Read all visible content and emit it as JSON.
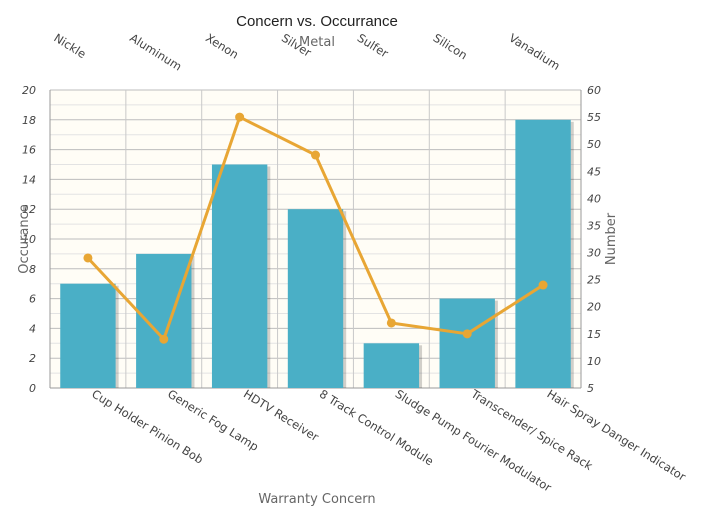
{
  "chart_data": {
    "type": "bar",
    "title": "Concern vs. Occurrance",
    "xlabel": "Warranty Concern",
    "ylabel": "Occurance",
    "y2label": "Number",
    "x2label": "Metal",
    "categories": [
      "Cup Holder Pinion Bob",
      "Generic Fog Lamp",
      "HDTV Receiver",
      "8 Track Control Module",
      "Sludge Pump Fourier Modulator",
      "Transcender/ Spice Rack",
      "Hair Spray Danger Indicator"
    ],
    "top_categories": [
      "Nickle",
      "Aluminum",
      "Xenon",
      "Silver",
      "Sulfer",
      "Silicon",
      "Vanadium"
    ],
    "series": [
      {
        "type": "bar",
        "axis": "left",
        "values": [
          7,
          9,
          15,
          12,
          3,
          6,
          18
        ]
      },
      {
        "type": "line",
        "axis": "right",
        "values": [
          29,
          14,
          55,
          48,
          17,
          15,
          24
        ]
      }
    ],
    "ylim": [
      0,
      20
    ],
    "yticks": [
      0,
      2,
      4,
      6,
      8,
      10,
      12,
      14,
      16,
      18,
      20
    ],
    "y2lim": [
      5,
      60
    ],
    "y2ticks": [
      5,
      10,
      15,
      20,
      25,
      30,
      35,
      40,
      45,
      50,
      55,
      60
    ],
    "colors": {
      "bar": "#4aafc6",
      "line": "#e8a634",
      "plot_bg": "#fffdf6",
      "grid": "#c9c9c9"
    },
    "grid": true
  }
}
